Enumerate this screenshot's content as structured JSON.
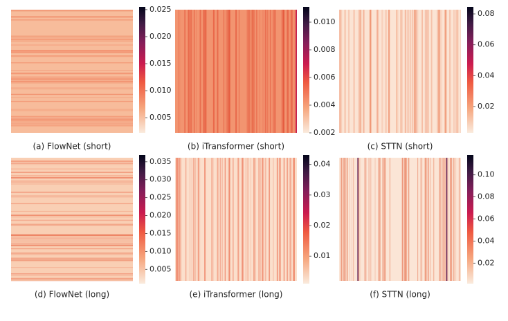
{
  "chart_data": [
    {
      "type": "heatmap",
      "caption": "(a) FlowNet (short)",
      "colormap": "rocket_r",
      "clim": [
        0.0022,
        0.0255
      ],
      "cticks": [
        0.005,
        {
          "value": 0.01,
          "label": "0.010"
        },
        0.015,
        {
          "value": 0.02,
          "label": "0.020"
        },
        0.025
      ]
    },
    {
      "type": "heatmap",
      "caption": "(b) iTransformer (short)",
      "colormap": "rocket_r",
      "clim": [
        0.002,
        0.0111
      ],
      "cticks": [
        0.002,
        0.004,
        0.006,
        0.008,
        {
          "value": 0.01,
          "label": "0.010"
        }
      ]
    },
    {
      "type": "heatmap",
      "caption": "(c) STTN (short)",
      "colormap": "rocket_r",
      "clim": [
        0.003,
        0.0845
      ],
      "cticks": [
        0.02,
        0.04,
        0.06,
        0.08
      ]
    },
    {
      "type": "heatmap",
      "caption": "(d) FlowNet (long)",
      "colormap": "rocket_r",
      "clim": [
        0.001,
        0.0369
      ],
      "cticks": [
        0.005,
        {
          "value": 0.01,
          "label": "0.010"
        },
        0.015,
        {
          "value": 0.02,
          "label": "0.020"
        },
        0.025,
        {
          "value": 0.03,
          "label": "0.030"
        },
        0.035
      ]
    },
    {
      "type": "heatmap",
      "caption": "(e) iTransformer (long)",
      "colormap": "rocket_r",
      "clim": [
        0.001,
        0.0431
      ],
      "cticks": [
        0.01,
        0.02,
        0.03,
        0.04
      ]
    },
    {
      "type": "heatmap",
      "caption": "(f) STTN (long)",
      "colormap": "rocket_r",
      "clim": [
        0.0014,
        0.118
      ],
      "cticks": [
        0.02,
        0.04,
        0.06,
        0.08,
        {
          "value": 0.1,
          "label": "0.10"
        }
      ]
    }
  ]
}
